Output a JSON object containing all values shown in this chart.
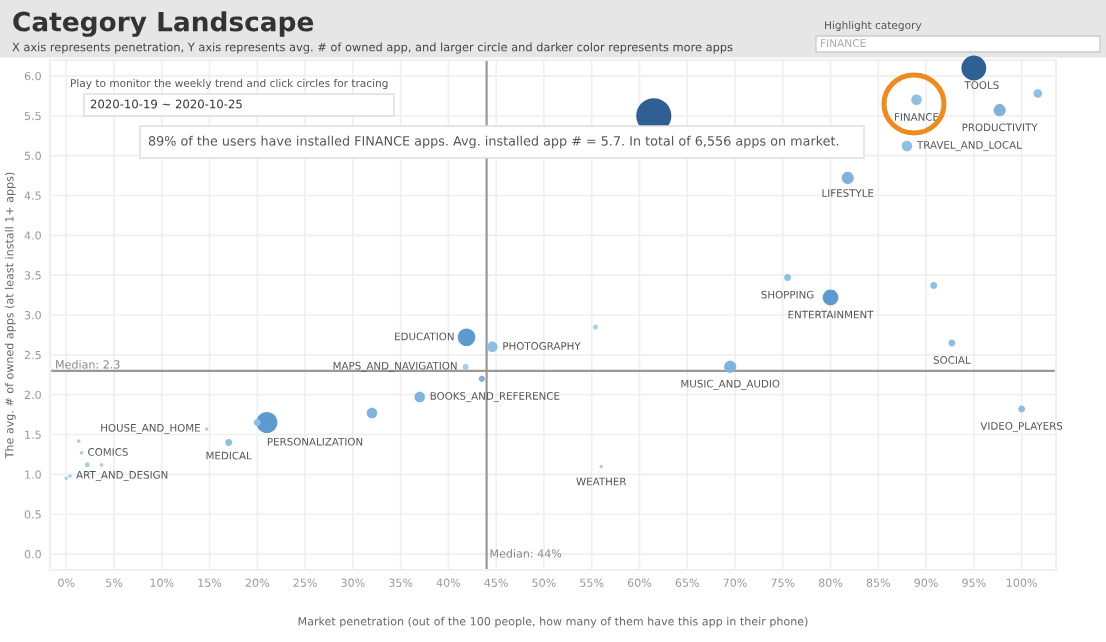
{
  "chart_data": {
    "type": "bubble",
    "title": "Category Landscape",
    "subtitle": "X axis represents penetration, Y axis represents avg. # of owned app, and larger circle and darker color represents more apps",
    "xlabel": "Market penetration (out of the 100 people, how many of them have this app in their phone)",
    "ylabel": "The avg. # of owned apps (at least install 1+ apps)",
    "x": [
      95,
      89,
      101.7,
      97.7,
      88,
      81.8,
      61.5,
      41.9,
      44.6,
      41.8,
      43.5,
      37,
      32,
      21,
      20,
      17,
      14.7,
      1.3,
      1.6,
      2.2,
      3.7,
      0.4,
      0,
      55.4,
      75.5,
      80,
      90.8,
      92.7,
      69.5,
      100,
      56
    ],
    "values": [
      6.1,
      5.7,
      5.78,
      5.57,
      5.12,
      4.72,
      5.5,
      2.72,
      2.6,
      2.35,
      2.2,
      1.97,
      1.77,
      1.65,
      1.65,
      1.4,
      1.57,
      1.42,
      1.27,
      1.12,
      1.12,
      0.98,
      0.95,
      2.85,
      3.47,
      3.22,
      3.37,
      2.65,
      2.35,
      1.82,
      1.1
    ],
    "sizes": [
      0.5,
      0.09,
      0.06,
      0.12,
      0.09,
      0.12,
      1,
      0.25,
      0.09,
      0.03,
      0.03,
      0.09,
      0.09,
      0.36,
      0.04,
      0.04,
      0.01,
      0.01,
      0.01,
      0.02,
      0.01,
      0.01,
      0.01,
      0.02,
      0.04,
      0.2,
      0.04,
      0.04,
      0.12,
      0.04,
      0.01
    ],
    "colors": [
      "#2f5f93",
      "#8fbfe3",
      "#8fbfe3",
      "#7fb3dd",
      "#8fbfe3",
      "#7fb3dd",
      "#2f5f93",
      "#5b9bd0",
      "#8fbfe3",
      "#a6cdea",
      "#7fb3dd",
      "#7fb3dd",
      "#7fb3dd",
      "#5b9bd0",
      "#8fbfe3",
      "#8fbfe3",
      "#a6cdea",
      "#a6cdea",
      "#a6cdea",
      "#a6cdea",
      "#a6cdea",
      "#a6cdea",
      "#a6cdea",
      "#a6cdea",
      "#8fbfe3",
      "#5b9bd0",
      "#8fbfe3",
      "#8fbfe3",
      "#7fb3dd",
      "#8fbfe3",
      "#a6cdea"
    ],
    "xlim": [
      -1.7,
      103.6
    ],
    "ylim": [
      -0.2,
      6.2
    ],
    "xticks": [
      {
        "value": 0,
        "label": "0%"
      },
      {
        "value": 5,
        "label": "5%"
      },
      {
        "value": 10,
        "label": "10%"
      },
      {
        "value": 15,
        "label": "15%"
      },
      {
        "value": 20,
        "label": "20%"
      },
      {
        "value": 25,
        "label": "25%"
      },
      {
        "value": 30,
        "label": "30%"
      },
      {
        "value": 35,
        "label": "35%"
      },
      {
        "value": 40,
        "label": "40%"
      },
      {
        "value": 45,
        "label": "45%"
      },
      {
        "value": 50,
        "label": "50%"
      },
      {
        "value": 55,
        "label": "55%"
      },
      {
        "value": 60,
        "label": "60%"
      },
      {
        "value": 65,
        "label": "65%"
      },
      {
        "value": 70,
        "label": "70%"
      },
      {
        "value": 75,
        "label": "75%"
      },
      {
        "value": 80,
        "label": "80%"
      },
      {
        "value": 85,
        "label": "85%"
      },
      {
        "value": 90,
        "label": "90%"
      },
      {
        "value": 95,
        "label": "95%"
      },
      {
        "value": 100,
        "label": "100%"
      }
    ],
    "yticks": [
      {
        "value": 0,
        "label": "0.0"
      },
      0.5,
      {
        "value": 1,
        "label": "1.0"
      },
      1.5,
      {
        "value": 2,
        "label": "2.0"
      },
      2.5,
      {
        "value": 3,
        "label": "3.0"
      },
      3.5,
      {
        "value": 4,
        "label": "4.0"
      },
      4.5,
      {
        "value": 5,
        "label": "5.0"
      },
      5.5,
      {
        "value": 6,
        "label": "6.0"
      }
    ],
    "grid": true,
    "ref_lines": [
      {
        "axis": "y",
        "value": 2.3,
        "label": "Median: 2.3",
        "color": "#999999"
      },
      {
        "axis": "x",
        "value": 44,
        "label": "Median: 44%",
        "color": "#999999"
      }
    ],
    "annotations": [
      "Highlight category",
      "FINANCE",
      "Play to monitor the weekly trend and click circles for tracing",
      "2020-10-19 ~ 2020-10-25",
      "89% of the users have installed FINANCE apps. Avg. installed app # = 5.7. In total of 6,556 apps on market.",
      {
        "text": "TOOLS",
        "x": 95,
        "y": 6.1
      },
      {
        "text": "FINANCE",
        "x": 89,
        "y": 5.7
      },
      {
        "text": "PRODUCTIVITY",
        "x": 97.7,
        "y": 5.57
      },
      {
        "text": "TRAVEL_AND_LOCAL",
        "x": 88,
        "y": 5.12
      },
      {
        "text": "LIFESTYLE",
        "x": 81.8,
        "y": 4.72
      },
      {
        "text": "SHOPPING",
        "x": 75.5,
        "y": 3.47
      },
      {
        "text": "ENTERTAINMENT",
        "x": 80,
        "y": 3.22
      },
      {
        "text": "SOCIAL",
        "x": 92.7,
        "y": 2.65
      },
      {
        "text": "MUSIC_AND_AUDIO",
        "x": 69.5,
        "y": 2.35
      },
      {
        "text": "VIDEO_PLAYERS",
        "x": 100,
        "y": 1.82
      },
      {
        "text": "WEATHER",
        "x": 56,
        "y": 1.1
      },
      {
        "text": "EDUCATION",
        "x": 41.9,
        "y": 2.72
      },
      {
        "text": "PHOTOGRAPHY",
        "x": 44.6,
        "y": 2.6
      },
      {
        "text": "MAPS_AND_NAVIGATION",
        "x": 41.8,
        "y": 2.35
      },
      {
        "text": "BOOKS_AND_REFERENCE",
        "x": 37,
        "y": 1.97
      },
      {
        "text": "PERSONALIZATION",
        "x": 21,
        "y": 1.65
      },
      {
        "text": "HOUSE_AND_HOME",
        "x": 14.7,
        "y": 1.57
      },
      {
        "text": "MEDICAL",
        "x": 17,
        "y": 1.4
      },
      {
        "text": "COMICS",
        "x": 1.6,
        "y": 1.27
      },
      {
        "text": "ART_AND_DESIGN",
        "x": 0.4,
        "y": 0.98
      }
    ]
  }
}
